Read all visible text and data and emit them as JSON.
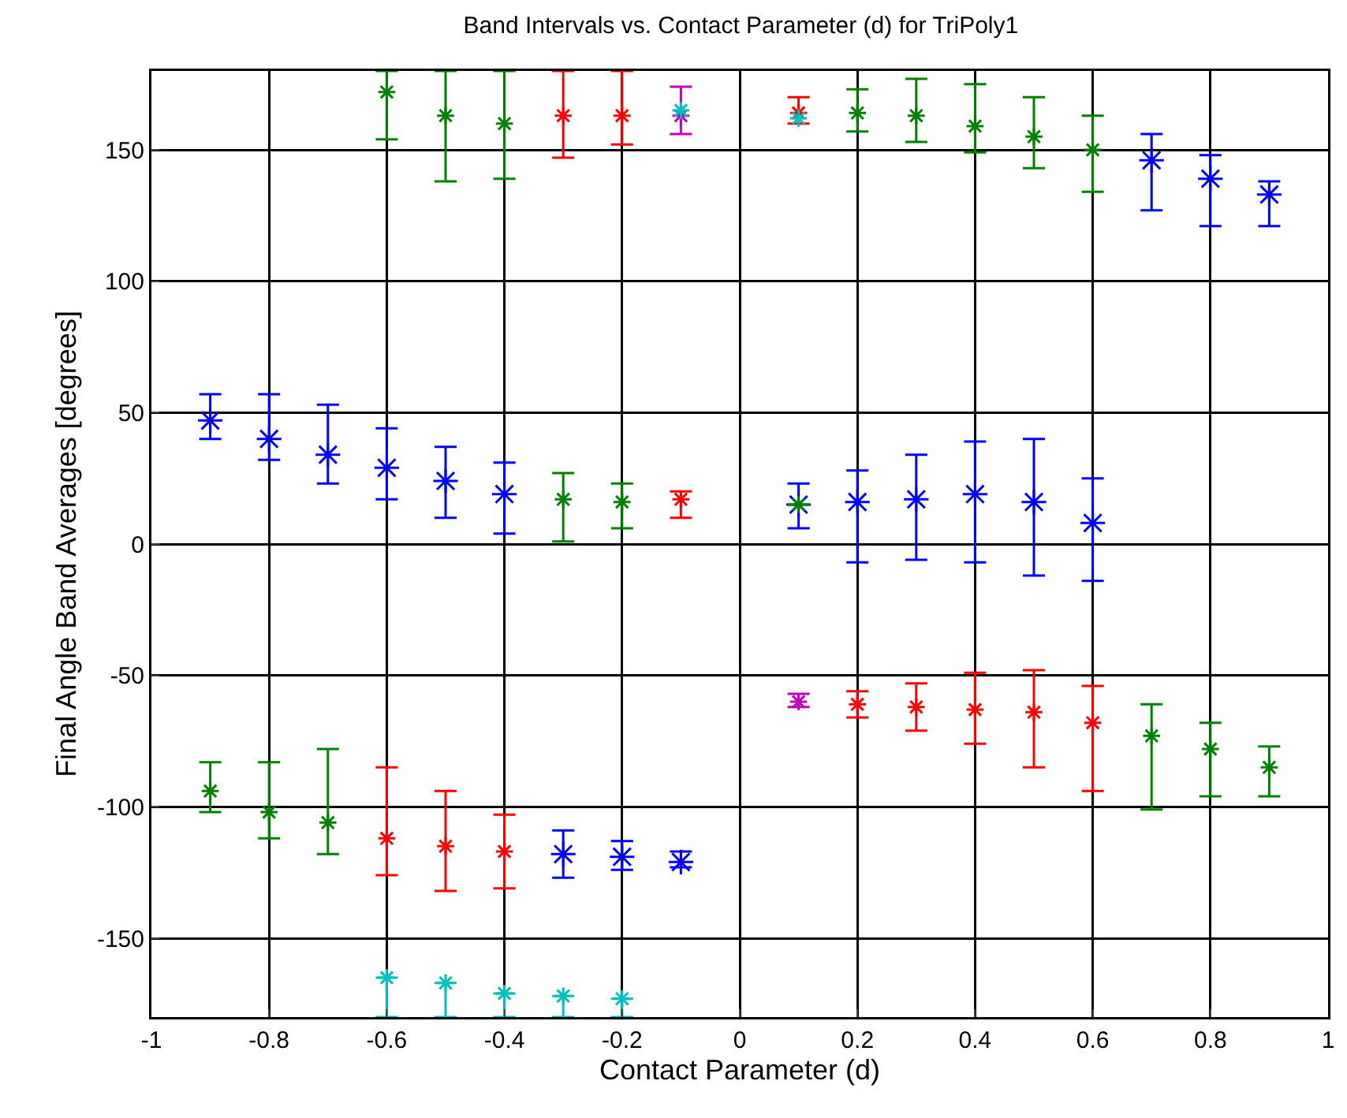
{
  "chart_data": {
    "type": "scatter",
    "title": "Band Intervals vs. Contact Parameter (d) for TriPoly1",
    "xlabel": "Contact Parameter (d)",
    "ylabel": "Final Angle Band Averages [degrees]",
    "xlim": [
      -1,
      1
    ],
    "xticks": [
      -1,
      -0.8,
      -0.6,
      -0.4,
      -0.2,
      0,
      0.2,
      0.4,
      0.6,
      0.8,
      1
    ],
    "ylim": [
      -180,
      180
    ],
    "yticks": [
      -150,
      -100,
      -50,
      0,
      50,
      100,
      150
    ],
    "grid": true,
    "marker": "cross",
    "series": [
      {
        "color": "#0000ff",
        "x": [
          -0.9,
          -0.8,
          -0.7,
          -0.6,
          -0.5,
          -0.4,
          0.1,
          0.2,
          0.3,
          0.4,
          0.5,
          0.6,
          0.7,
          0.8,
          0.9,
          -0.3,
          -0.2,
          -0.1
        ],
        "values": [
          47,
          40,
          34,
          29,
          24,
          19,
          15,
          16,
          17,
          19,
          16,
          8,
          146,
          139,
          133,
          -118,
          -119,
          -121
        ],
        "errors": [
          [
            40,
            57
          ],
          [
            32,
            57
          ],
          [
            23,
            53
          ],
          [
            17,
            44
          ],
          [
            10,
            37
          ],
          [
            4,
            31
          ],
          [
            6,
            23
          ],
          [
            -7,
            28
          ],
          [
            -6,
            34
          ],
          [
            -7,
            39
          ],
          [
            -12,
            40
          ],
          [
            -14,
            25
          ],
          [
            127,
            156
          ],
          [
            121,
            148
          ],
          [
            121,
            138
          ],
          [
            -127,
            -109
          ],
          [
            -124,
            -113
          ],
          [
            -123,
            -117
          ]
        ]
      },
      {
        "color": "#008000",
        "x": [
          -0.3,
          -0.2,
          -0.1,
          0.1,
          -0.6,
          -0.5,
          -0.4,
          0.2,
          0.3,
          0.4,
          0.5,
          0.6,
          -0.9,
          -0.8,
          -0.7,
          0.7,
          0.8,
          0.9
        ],
        "values": [
          17,
          16,
          null,
          15,
          172,
          163,
          160,
          164,
          163,
          159,
          155,
          150,
          -94,
          -102,
          -106,
          -73,
          -78,
          -85
        ],
        "errors": [
          [
            1,
            27
          ],
          [
            6,
            23
          ],
          null,
          null,
          [
            154,
            180
          ],
          [
            138,
            180
          ],
          [
            139,
            180
          ],
          [
            157,
            173
          ],
          [
            153,
            177
          ],
          [
            149,
            175
          ],
          [
            143,
            170
          ],
          [
            134,
            163
          ],
          [
            -102,
            -83
          ],
          [
            -112,
            -83
          ],
          [
            -118,
            -78
          ],
          [
            -101,
            -61
          ],
          [
            -96,
            -68
          ],
          [
            -96,
            -77
          ]
        ]
      },
      {
        "color": "#ff0000",
        "x": [
          -0.1,
          -0.3,
          -0.2,
          0.1,
          -0.6,
          -0.5,
          -0.4,
          0.2,
          0.3,
          0.4,
          0.5,
          0.6
        ],
        "values": [
          17,
          163,
          163,
          164,
          -112,
          -115,
          -117,
          -61,
          -62,
          -63,
          -64,
          -68
        ],
        "errors": [
          [
            10,
            20
          ],
          [
            147,
            180
          ],
          [
            152,
            180
          ],
          [
            160,
            170
          ],
          [
            -126,
            -85
          ],
          [
            -132,
            -94
          ],
          [
            -131,
            -103
          ],
          [
            -66,
            -56
          ],
          [
            -71,
            -53
          ],
          [
            -76,
            -49
          ],
          [
            -85,
            -48
          ],
          [
            -94,
            -54
          ]
        ]
      },
      {
        "color": "#bf00bf",
        "x": [
          -0.1,
          0.1
        ],
        "values": [
          163,
          -60
        ],
        "errors": [
          [
            156,
            174
          ],
          [
            -62,
            -57
          ]
        ]
      },
      {
        "color": "#00bfbf",
        "x": [
          -0.1,
          0.1
        ],
        "values": [
          165,
          162
        ]
      },
      {
        "color": "#00bfbf",
        "x": [
          -0.6,
          -0.5,
          -0.4,
          -0.3,
          -0.2
        ],
        "values": [
          -165,
          -167,
          -171,
          -172,
          -173
        ],
        "errors": [
          [
            -180,
            -165
          ],
          [
            -180,
            -167
          ],
          [
            -180,
            -171
          ],
          [
            -180,
            -172
          ],
          [
            -180,
            -173
          ]
        ]
      }
    ]
  }
}
